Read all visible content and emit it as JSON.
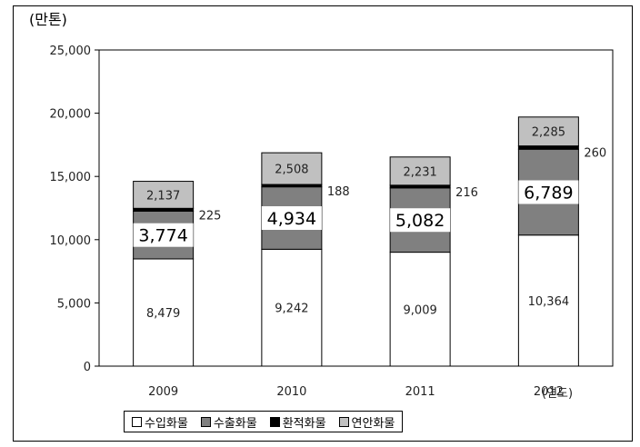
{
  "chart_data": {
    "type": "bar",
    "stacked": true,
    "unit_label": "(만톤)",
    "xlabel": "(연도)",
    "categories": [
      "2009",
      "2010",
      "2011",
      "2012"
    ],
    "ylim": [
      0,
      25000
    ],
    "yticks": [
      0,
      5000,
      10000,
      15000,
      20000,
      25000
    ],
    "ytick_labels": [
      "0",
      "5,000",
      "10,000",
      "15,000",
      "20,000",
      "25,000"
    ],
    "grid": false,
    "legend_placement": "bottom",
    "series": [
      {
        "name": "수입화물",
        "values": [
          8479,
          9242,
          9009,
          10364
        ],
        "labels": [
          "8,479",
          "9,242",
          "9,009",
          "10,364"
        ],
        "color": "#ffffff"
      },
      {
        "name": "수출화물",
        "values": [
          3774,
          4934,
          5082,
          6789
        ],
        "labels": [
          "3,774",
          "4,934",
          "5,082",
          "6,789"
        ],
        "color": "#808080"
      },
      {
        "name": "환적화물",
        "values": [
          225,
          188,
          216,
          260
        ],
        "labels": [
          "225",
          "188",
          "216",
          "260"
        ],
        "color": "#000000"
      },
      {
        "name": "연안화물",
        "values": [
          2137,
          2508,
          2231,
          2285
        ],
        "labels": [
          "2,137",
          "2,508",
          "2,231",
          "2,285"
        ],
        "color": "#c0c0c0"
      }
    ]
  }
}
